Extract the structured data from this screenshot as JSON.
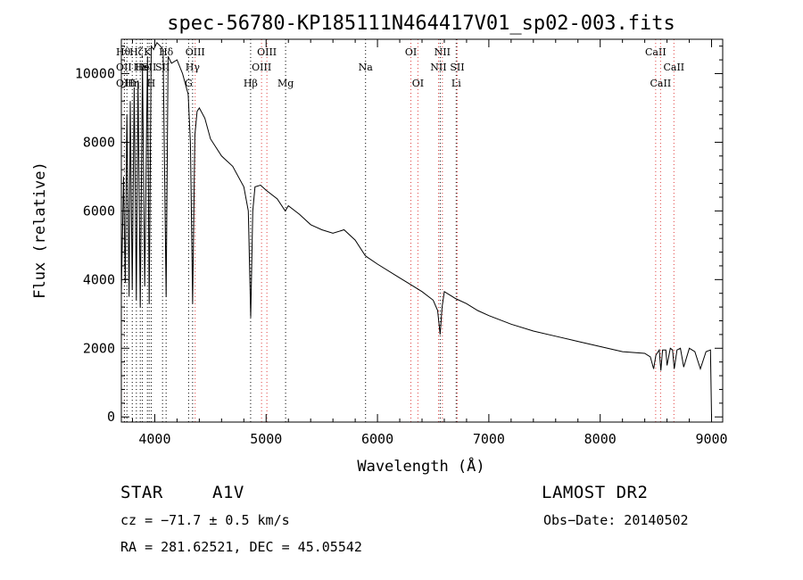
{
  "chart_data": {
    "type": "line",
    "title": "spec-56780-KP185111N464417V01_sp02-003.fits",
    "xlabel": "Wavelength (Å)",
    "ylabel": "Flux (relative)",
    "xlim": [
      3700,
      9100
    ],
    "ylim": [
      -150,
      11000
    ],
    "x_ticks": [
      4000,
      5000,
      6000,
      7000,
      8000,
      9000
    ],
    "y_ticks": [
      0,
      2000,
      4000,
      6000,
      8000,
      10000
    ],
    "series": [
      {
        "name": "spectrum",
        "x": [
          3700,
          3720,
          3735,
          3750,
          3770,
          3780,
          3798,
          3815,
          3835,
          3850,
          3870,
          3890,
          3910,
          3935,
          3950,
          3968,
          3990,
          4020,
          4050,
          4075,
          4102,
          4120,
          4150,
          4200,
          4250,
          4300,
          4320,
          4340,
          4360,
          4380,
          4400,
          4450,
          4500,
          4600,
          4700,
          4800,
          4840,
          4862,
          4880,
          4900,
          4950,
          5000,
          5100,
          5172,
          5200,
          5300,
          5400,
          5500,
          5600,
          5700,
          5800,
          5890,
          5910,
          6000,
          6200,
          6300,
          6400,
          6500,
          6540,
          6563,
          6580,
          6600,
          6700,
          6800,
          6900,
          7000,
          7200,
          7400,
          7600,
          7800,
          8000,
          8200,
          8400,
          8450,
          8480,
          8500,
          8530,
          8545,
          8560,
          8590,
          8600,
          8630,
          8650,
          8665,
          8690,
          8720,
          8750,
          8800,
          8850,
          8900,
          8950,
          8990,
          9000
        ],
        "y": [
          3600,
          7000,
          3900,
          8800,
          3500,
          9200,
          3700,
          9600,
          3400,
          9800,
          3200,
          10200,
          3800,
          10500,
          3300,
          10800,
          10700,
          10900,
          10800,
          10700,
          3500,
          10500,
          10300,
          10400,
          10000,
          9400,
          8000,
          3300,
          8200,
          8900,
          9000,
          8700,
          8100,
          7600,
          7300,
          6700,
          6000,
          2900,
          6000,
          6700,
          6750,
          6600,
          6350,
          6000,
          6150,
          5900,
          5600,
          5450,
          5350,
          5450,
          5150,
          4700,
          4650,
          4450,
          4050,
          3850,
          3650,
          3400,
          3100,
          2400,
          3200,
          3650,
          3450,
          3300,
          3100,
          2950,
          2700,
          2500,
          2350,
          2200,
          2050,
          1900,
          1850,
          1750,
          1400,
          1800,
          1950,
          1350,
          1950,
          1950,
          1500,
          2000,
          1950,
          1400,
          1950,
          2000,
          1450,
          2000,
          1900,
          1400,
          1900,
          1950,
          0
        ]
      }
    ],
    "line_markers": [
      {
        "wl": 3727,
        "label": "OII",
        "row": 1,
        "side": "left",
        "color": "#e04040"
      },
      {
        "wl": 3727,
        "label": "OIII",
        "row": 2,
        "side": "left",
        "color": "#000000"
      },
      {
        "wl": 3750,
        "label": "Hθ",
        "row": 0,
        "side": "left",
        "color": "#000000"
      },
      {
        "wl": 3798,
        "label": "Hη",
        "row": 2,
        "side": "center",
        "color": "#000000"
      },
      {
        "wl": 3835,
        "label": "Hζ",
        "row": 0,
        "side": "center",
        "color": "#000000"
      },
      {
        "wl": 3870,
        "label": "Hε",
        "row": 1,
        "side": "center",
        "color": "#000000"
      },
      {
        "wl": 3889,
        "label": "He",
        "row": 1,
        "side": "center",
        "color": "#000000"
      },
      {
        "wl": 3934,
        "label": "K",
        "row": 0,
        "side": "center",
        "color": "#000000"
      },
      {
        "wl": 3950,
        "label": "SII",
        "row": 1,
        "side": "center",
        "color": "#000000"
      },
      {
        "wl": 3968,
        "label": "H",
        "row": 2,
        "side": "center",
        "color": "#000000"
      },
      {
        "wl": 4070,
        "label": "SII",
        "row": 1,
        "side": "center",
        "color": "#000000"
      },
      {
        "wl": 4102,
        "label": "Hδ",
        "row": 0,
        "side": "center",
        "color": "#000000"
      },
      {
        "wl": 4304,
        "label": "G",
        "row": 2,
        "side": "center",
        "color": "#000000"
      },
      {
        "wl": 4340,
        "label": "Hγ",
        "row": 1,
        "side": "center",
        "color": "#000000"
      },
      {
        "wl": 4363,
        "label": "OIII",
        "row": 0,
        "side": "center",
        "color": "#e04040"
      },
      {
        "wl": 4861,
        "label": "Hβ",
        "row": 2,
        "side": "center",
        "color": "#000000"
      },
      {
        "wl": 4959,
        "label": "OIII",
        "row": 1,
        "side": "center",
        "color": "#e04040"
      },
      {
        "wl": 5007,
        "label": "OIII",
        "row": 0,
        "side": "center",
        "color": "#e04040"
      },
      {
        "wl": 5175,
        "label": "Mg",
        "row": 2,
        "side": "center",
        "color": "#000000"
      },
      {
        "wl": 5893,
        "label": "Na",
        "row": 1,
        "side": "center",
        "color": "#000000"
      },
      {
        "wl": 6300,
        "label": "OI",
        "row": 0,
        "side": "center",
        "color": "#e04040"
      },
      {
        "wl": 6363,
        "label": "OI",
        "row": 2,
        "side": "center",
        "color": "#e04040"
      },
      {
        "wl": 6548,
        "label": "NII",
        "row": 1,
        "side": "center",
        "color": "#e04040"
      },
      {
        "wl": 6563,
        "label": "",
        "row": 0,
        "side": "center",
        "color": "#000000"
      },
      {
        "wl": 6583,
        "label": "NII",
        "row": 0,
        "side": "center",
        "color": "#e04040"
      },
      {
        "wl": 6707,
        "label": "Li",
        "row": 2,
        "side": "center",
        "color": "#000000"
      },
      {
        "wl": 6716,
        "label": "SII",
        "row": 1,
        "side": "center",
        "color": "#e04040"
      },
      {
        "wl": 8498,
        "label": "CaII",
        "row": 0,
        "side": "center",
        "color": "#e04040"
      },
      {
        "wl": 8542,
        "label": "CaII",
        "row": 2,
        "side": "center",
        "color": "#e04040"
      },
      {
        "wl": 8662,
        "label": "CaII",
        "row": 1,
        "side": "center",
        "color": "#e04040"
      }
    ]
  },
  "info": {
    "object_type": "STAR",
    "subclass": "A1V",
    "survey": "LAMOST DR2",
    "cz": "cz = −71.7 ± 0.5 km/s",
    "obs_date": "Obs−Date: 20140502",
    "coords": "RA = 281.62521, DEC =  45.05542"
  }
}
